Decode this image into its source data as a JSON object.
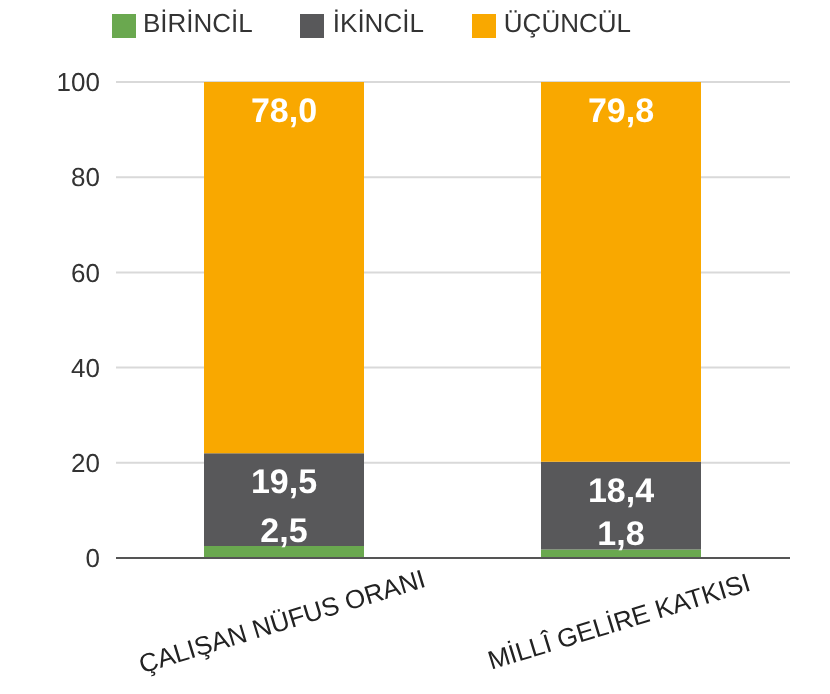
{
  "chart_data": {
    "type": "bar",
    "stacked": true,
    "categories": [
      "ÇALIŞAN NÜFUS ORANI",
      "MİLLÎ GELİRE KATKISI"
    ],
    "series": [
      {
        "name": "BİRİNCİL",
        "color": "#6aa84f",
        "values": [
          2.5,
          1.8
        ],
        "value_labels": [
          "2,5",
          "1,8"
        ]
      },
      {
        "name": "İKİNCİL",
        "color": "#58585a",
        "values": [
          19.5,
          18.4
        ],
        "value_labels": [
          "19,5",
          "18,4"
        ]
      },
      {
        "name": "ÜÇÜNCÜL",
        "color": "#f9a800",
        "values": [
          78.0,
          79.8
        ],
        "value_labels": [
          "78,0",
          "79,8"
        ]
      }
    ],
    "ylim": [
      0,
      100
    ],
    "yticks": [
      0,
      20,
      40,
      60,
      80,
      100
    ],
    "grid": "y",
    "legend": "top"
  }
}
